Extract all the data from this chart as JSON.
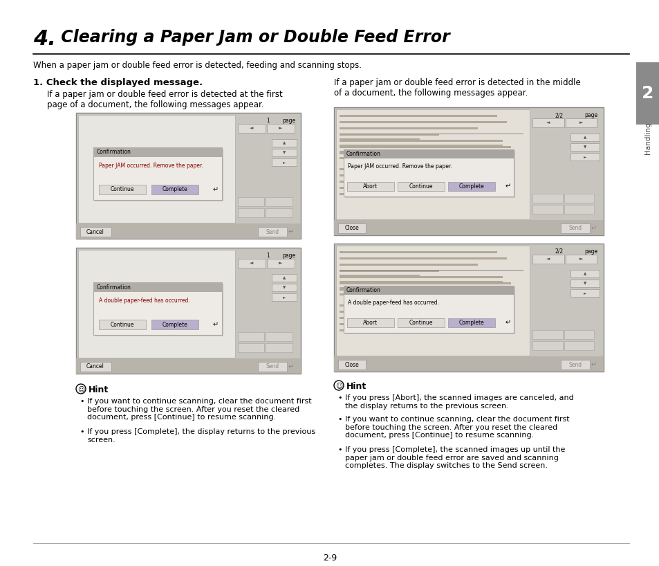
{
  "title_number": "4.",
  "title_text": " Clearing a Paper Jam or Double Feed Error",
  "subtitle": "When a paper jam or double feed error is detected, feeding and scanning stops.",
  "step1_bold": "1. Check the displayed message.",
  "step1_text1": "If a paper jam or double feed error is detected at the first",
  "step1_text2": "page of a document, the following messages appear.",
  "right_intro1": "If a paper jam or double feed error is detected in the middle",
  "right_intro2": "of a document, the following messages appear.",
  "screen1_dialog_title": "Confirmation",
  "screen1_dialog_msg": "Paper JAM occurred. Remove the paper.",
  "screen2_dialog_title": "Confirmation",
  "screen2_dialog_msg": "A double paper-feed has occurred.",
  "screen3_dialog_title": "Confirmation",
  "screen3_dialog_msg": "Paper JAM occurred. Remove the paper.",
  "screen4_dialog_title": "Confirmation",
  "screen4_dialog_msg": "A double paper-feed has occurred.",
  "hint_title": "Hint",
  "hint_left": [
    "If you want to continue scanning, clear the document first\nbefore touching the screen. After you reset the cleared\ndocument, press [Continue] to resume scanning.",
    "If you press [Complete], the display returns to the previous\nscreen."
  ],
  "hint_right": [
    "If you press [Abort], the scanned images are canceled, and\nthe display returns to the previous screen.",
    "If you want to continue scanning, clear the document first\nbefore touching the screen. After you reset the cleared\ndocument, press [Continue] to resume scanning.",
    "If you press [Complete], the scanned images up until the\npaper jam or double feed error are saved and scanning\ncompletes. The display switches to the Send screen."
  ],
  "tab_number": "2",
  "tab_label": "Handling",
  "page_number": "2-9",
  "bg_color": "#ffffff",
  "screen_bg": "#c8c5be",
  "inner_bg": "#e8e6e0",
  "inner_bg_right": "#dedad2",
  "dialog_header_bg": "#9e9a96",
  "dialog_body_bg": "#edeae6",
  "btn_normal_bg": "#dedad6",
  "btn_selected_bg": "#b8b0cc",
  "tab_bg": "#8a8a8a",
  "line_color": "#aaaaaa",
  "doc_line_color": "#888888"
}
